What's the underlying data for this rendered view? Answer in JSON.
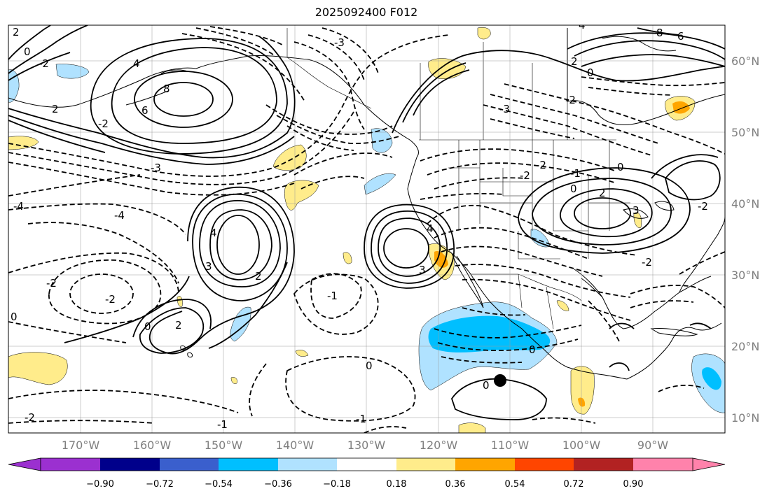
{
  "title": "2025092400 F012",
  "map": {
    "lon_ticks": [
      "170°W",
      "160°W",
      "150°W",
      "140°W",
      "130°W",
      "120°W",
      "110°W",
      "100°W",
      "90°W"
    ],
    "lat_ticks": [
      "60°N",
      "50°N",
      "40°N",
      "30°N",
      "20°N",
      "10°N"
    ],
    "contour_labels": [
      "2",
      "0",
      "-2",
      "8",
      "6",
      "4",
      "2",
      "-2",
      "-3",
      "-3",
      "4",
      "2",
      "0",
      "-2",
      "-4",
      "-2",
      "-2",
      "2",
      "0",
      "-4",
      "4",
      "3",
      "3",
      "-1",
      "2",
      "0",
      "-2",
      "-2",
      "3",
      "-2",
      "0",
      "4",
      "2",
      "-2",
      "0",
      "-3",
      "-1",
      "0",
      "-2",
      "0",
      "-1",
      "-1",
      "0",
      "8",
      "6"
    ],
    "labels_text_note": ""
  },
  "colorbar": {
    "colors": [
      "#9b30d0",
      "#00008b",
      "#3a5fcd",
      "#00bfff",
      "#b0e2ff",
      "#ffffff",
      "#ffec8b",
      "#ffa500",
      "#ff4500",
      "#b22222",
      "#ff82ab"
    ],
    "tick_labels": [
      "−0.90",
      "−0.72",
      "−0.54",
      "−0.36",
      "−0.18",
      "0.18",
      "0.36",
      "0.54",
      "0.72",
      "0.90"
    ]
  },
  "fills": {
    "light_blue": "#b0e2ff",
    "deep_sky_blue": "#00bfff",
    "light_yellow": "#ffec8b",
    "orange": "#ffa500"
  }
}
